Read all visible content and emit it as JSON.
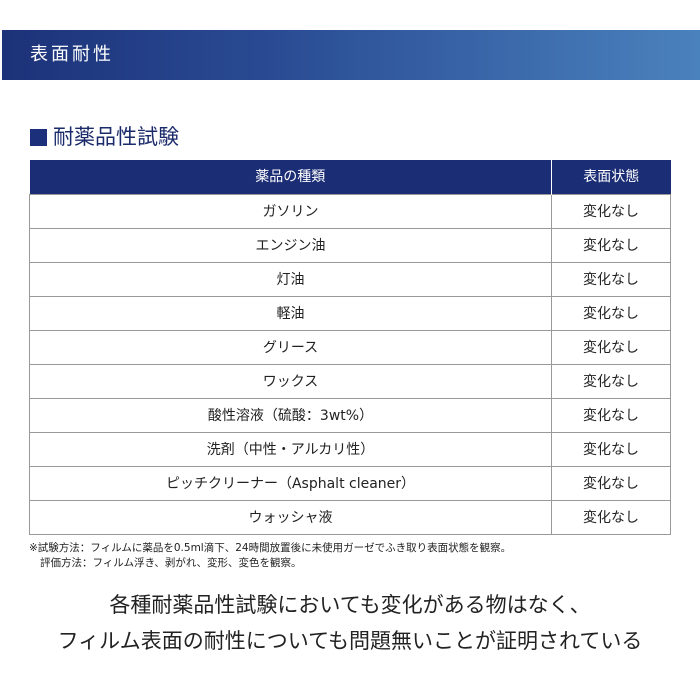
{
  "header": {
    "title": "表面耐性"
  },
  "section": {
    "title": "耐薬品性試験"
  },
  "table": {
    "headers": [
      "薬品の種類",
      "表面状態"
    ],
    "rows": [
      [
        "ガソリン",
        "変化なし"
      ],
      [
        "エンジン油",
        "変化なし"
      ],
      [
        "灯油",
        "変化なし"
      ],
      [
        "軽油",
        "変化なし"
      ],
      [
        "グリース",
        "変化なし"
      ],
      [
        "ワックス",
        "変化なし"
      ],
      [
        "酸性溶液（硫酸：3wt%）",
        "変化なし"
      ],
      [
        "洗剤（中性・アルカリ性）",
        "変化なし"
      ],
      [
        "ピッチクリーナー（Asphalt cleaner）",
        "変化なし"
      ],
      [
        "ウォッシャ液",
        "変化なし"
      ]
    ]
  },
  "notes": [
    "※試験方法：フィルムに薬品を0.5ml滴下、24時間放置後に未使用ガーゼでふき取り表面状態を観察。",
    "評価方法：フィルム浮き、剥がれ、変形、変色を観察。"
  ],
  "conclusion": [
    "各種耐薬品性試験においても変化がある物はなく、",
    "フィルム表面の耐性についても問題無いことが証明されている"
  ]
}
